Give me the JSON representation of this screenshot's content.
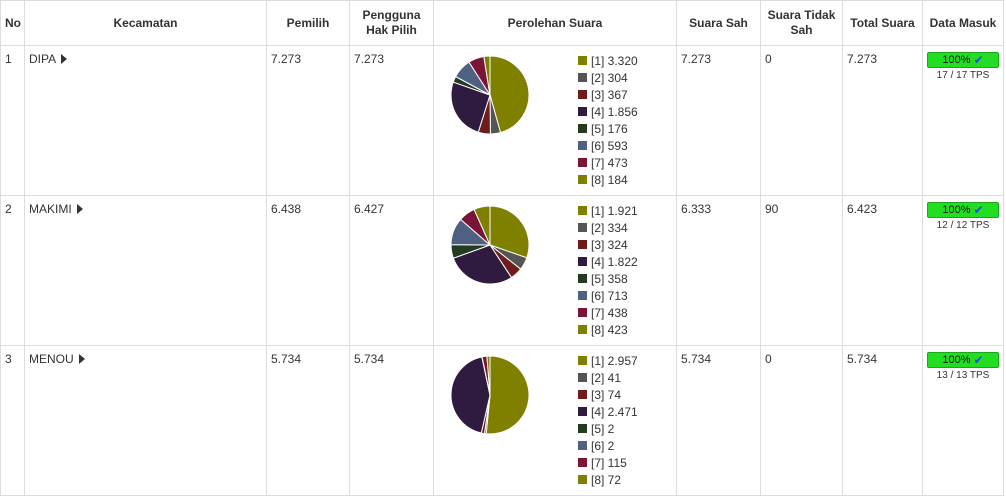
{
  "headers": {
    "no": "No",
    "kecamatan": "Kecamatan",
    "pemilih": "Pemilih",
    "pengguna": "Pengguna Hak Pilih",
    "perolehan": "Perolehan Suara",
    "sah": "Suara Sah",
    "tidak_sah": "Suara Tidak Sah",
    "total": "Total Suara",
    "masuk": "Data Masuk"
  },
  "colors": [
    "#808000",
    "#555555",
    "#6e1c1c",
    "#2f1a40",
    "#233c1f",
    "#506080",
    "#7a1538",
    "#808000"
  ],
  "rows": [
    {
      "no": "1",
      "kecamatan": "DIPA",
      "pemilih": "7.273",
      "pengguna": "7.273",
      "sah": "7.273",
      "tidak_sah": "0",
      "total": "7.273",
      "progress_label": "100%",
      "progress_fraction": 1.0,
      "tps": "17 / 17 TPS",
      "legend": [
        "[1] 3.320",
        "[2] 304",
        "[3] 367",
        "[4] 1.856",
        "[5] 176",
        "[6] 593",
        "[7] 473",
        "[8] 184"
      ]
    },
    {
      "no": "2",
      "kecamatan": "MAKIMI",
      "pemilih": "6.438",
      "pengguna": "6.427",
      "sah": "6.333",
      "tidak_sah": "90",
      "total": "6.423",
      "progress_label": "100%",
      "progress_fraction": 1.0,
      "tps": "12 / 12 TPS",
      "legend": [
        "[1] 1.921",
        "[2] 334",
        "[3] 324",
        "[4] 1.822",
        "[5] 358",
        "[6] 713",
        "[7] 438",
        "[8] 423"
      ]
    },
    {
      "no": "3",
      "kecamatan": "MENOU",
      "pemilih": "5.734",
      "pengguna": "5.734",
      "sah": "5.734",
      "tidak_sah": "0",
      "total": "5.734",
      "progress_label": "100%",
      "progress_fraction": 1.0,
      "tps": "13 / 13 TPS",
      "legend": [
        "[1] 2.957",
        "[2] 41",
        "[3] 74",
        "[4] 2.471",
        "[5] 2",
        "[6] 2",
        "[7] 115",
        "[8] 72"
      ]
    }
  ],
  "chart_data": [
    {
      "type": "pie",
      "title": "DIPA",
      "categories": [
        "[1]",
        "[2]",
        "[3]",
        "[4]",
        "[5]",
        "[6]",
        "[7]",
        "[8]"
      ],
      "values": [
        3320,
        304,
        367,
        1856,
        176,
        593,
        473,
        184
      ]
    },
    {
      "type": "pie",
      "title": "MAKIMI",
      "categories": [
        "[1]",
        "[2]",
        "[3]",
        "[4]",
        "[5]",
        "[6]",
        "[7]",
        "[8]"
      ],
      "values": [
        1921,
        334,
        324,
        1822,
        358,
        713,
        438,
        423
      ]
    },
    {
      "type": "pie",
      "title": "MENOU",
      "categories": [
        "[1]",
        "[2]",
        "[3]",
        "[4]",
        "[5]",
        "[6]",
        "[7]",
        "[8]"
      ],
      "values": [
        2957,
        41,
        74,
        2471,
        2,
        2,
        115,
        72
      ]
    }
  ]
}
